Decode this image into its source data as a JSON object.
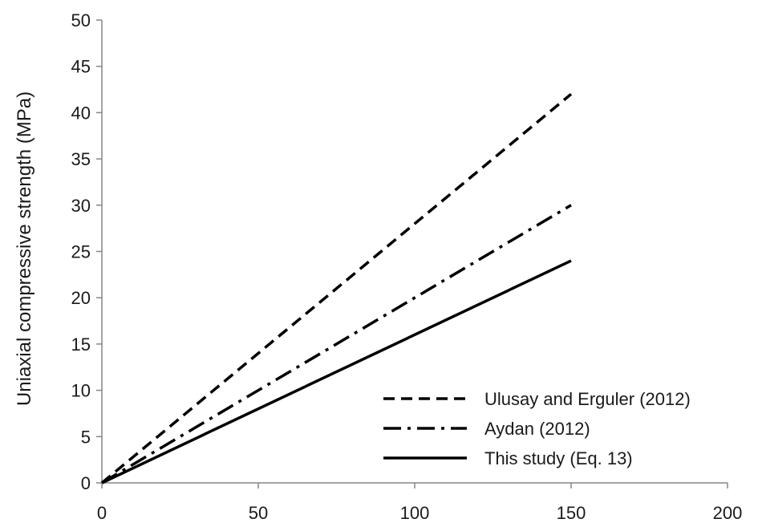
{
  "chart_data": {
    "type": "line",
    "title": "",
    "xlabel": "",
    "ylabel": "Uniaxial compressive strength (MPa)",
    "xlim": [
      0,
      200
    ],
    "ylim": [
      0,
      50
    ],
    "x_ticks": [
      "0",
      "50",
      "100",
      "150",
      "200"
    ],
    "y_ticks": [
      "0",
      "5",
      "10",
      "15",
      "20",
      "25",
      "30",
      "35",
      "40",
      "45",
      "50"
    ],
    "grid": false,
    "legend_position": "bottom-right",
    "series": [
      {
        "name": "Ulusay and Erguler (2012)",
        "style": "dashed",
        "color": "#000000",
        "x": [
          0,
          150
        ],
        "y": [
          0,
          42
        ]
      },
      {
        "name": "Aydan (2012)",
        "style": "dash-dot",
        "color": "#000000",
        "x": [
          0,
          150
        ],
        "y": [
          0,
          30
        ]
      },
      {
        "name": " This study (Eq. 13)",
        "style": "solid",
        "color": "#000000",
        "x": [
          0,
          150
        ],
        "y": [
          0,
          24
        ]
      }
    ]
  }
}
